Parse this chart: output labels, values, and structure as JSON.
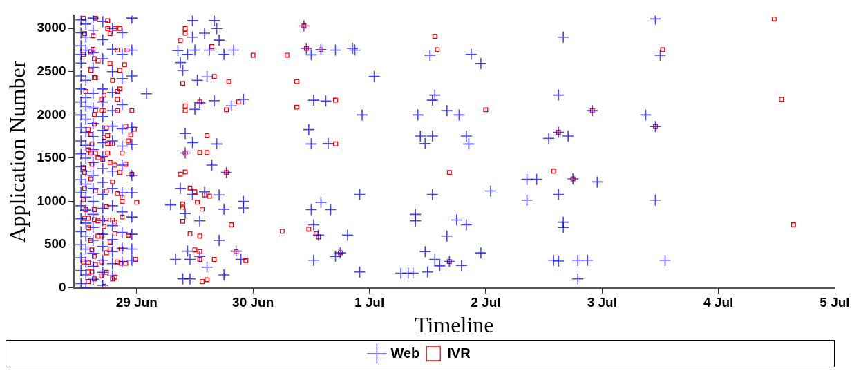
{
  "chart_data": {
    "type": "scatter",
    "xlabel": "Timeline",
    "ylabel": "Application Number",
    "xlim": [
      "--06-28T11:00",
      "--07-05"
    ],
    "ylim": [
      0,
      3150
    ],
    "xticks": [
      {
        "value": "--06-29",
        "label": "29 Jun"
      },
      {
        "value": "--06-30",
        "label": "30 Jun"
      },
      {
        "value": "--07-01",
        "label": "1 Jul"
      },
      {
        "value": "--07-02",
        "label": "2 Jul"
      },
      {
        "value": "--07-03",
        "label": "3 Jul"
      },
      {
        "value": "--07-04",
        "label": "4 Jul"
      },
      {
        "value": "--07-05",
        "label": "5 Jul"
      }
    ],
    "yticks": [
      0,
      500,
      1000,
      1500,
      2000,
      2500,
      3000
    ],
    "grid": false,
    "legend": "bottom",
    "series": [
      {
        "name": "Web",
        "color": "#0000ff",
        "marker": "cross",
        "x": [
          "--06-28T12:30",
          "--06-28T12:30",
          "--06-28T12:30",
          "--06-28T12:30",
          "--06-28T12:30",
          "--06-28T12:30",
          "--06-28T12:30",
          "--06-28T12:30",
          "--06-28T12:30",
          "--06-28T12:30",
          "--06-28T12:30",
          "--06-28T12:30",
          "--06-28T12:30",
          "--06-28T12:30",
          "--06-28T12:30",
          "--06-28T12:30",
          "--06-28T12:30",
          "--06-28T12:30",
          "--06-28T12:30",
          "--06-28T12:30",
          "--06-28T12:30",
          "--06-28T12:30",
          "--06-28T13:30",
          "--06-28T13:30",
          "--06-28T13:30",
          "--06-28T13:30",
          "--06-28T13:30",
          "--06-28T13:30",
          "--06-28T13:30",
          "--06-28T13:30",
          "--06-28T13:30",
          "--06-28T13:30",
          "--06-28T13:30",
          "--06-28T13:30",
          "--06-28T13:30",
          "--06-28T13:30",
          "--06-28T13:30",
          "--06-28T13:30",
          "--06-28T13:30",
          "--06-28T13:30",
          "--06-28T13:30",
          "--06-28T13:30",
          "--06-28T15:00",
          "--06-28T15:00",
          "--06-28T15:00",
          "--06-28T15:00",
          "--06-28T15:00",
          "--06-28T15:00",
          "--06-28T15:00",
          "--06-28T15:00",
          "--06-28T15:00",
          "--06-28T15:00",
          "--06-28T15:00",
          "--06-28T15:00",
          "--06-28T15:00",
          "--06-28T15:00",
          "--06-28T15:00",
          "--06-28T15:00",
          "--06-28T15:00",
          "--06-28T15:00",
          "--06-28T15:00",
          "--06-28T17:00",
          "--06-28T17:00",
          "--06-28T17:00",
          "--06-28T17:00",
          "--06-28T17:00",
          "--06-28T17:00",
          "--06-28T17:00",
          "--06-28T17:00",
          "--06-28T17:00",
          "--06-28T17:00",
          "--06-28T17:00",
          "--06-28T17:00",
          "--06-28T17:00",
          "--06-28T17:00",
          "--06-28T17:00",
          "--06-28T17:00",
          "--06-28T17:00",
          "--06-28T17:00",
          "--06-28T17:00",
          "--06-28T19:00",
          "--06-28T19:00",
          "--06-28T19:00",
          "--06-28T19:00",
          "--06-28T19:00",
          "--06-28T19:00",
          "--06-28T19:00",
          "--06-28T19:00",
          "--06-28T19:00",
          "--06-28T19:00",
          "--06-28T19:00",
          "--06-28T19:00",
          "--06-28T19:00",
          "--06-28T19:00",
          "--06-28T19:00",
          "--06-28T21:00",
          "--06-28T21:00",
          "--06-28T21:00",
          "--06-28T21:00",
          "--06-28T21:00",
          "--06-28T21:00",
          "--06-28T21:00",
          "--06-28T21:00",
          "--06-28T21:00",
          "--06-28T21:00",
          "--06-28T21:00",
          "--06-28T21:00",
          "--06-28T23:00",
          "--06-28T23:00",
          "--06-28T23:00",
          "--06-28T23:00",
          "--06-28T23:00",
          "--06-28T23:00",
          "--06-28T23:00",
          "--06-28T23:00",
          "--06-28T23:00",
          "--06-28T23:00",
          "--06-28T23:00",
          "--06-29T02:00",
          "--06-29T07:00",
          "--06-29T08:00",
          "--06-29T08:30",
          "--06-29T09:00",
          "--06-29T09:00",
          "--06-29T09:30",
          "--06-29T09:30",
          "--06-29T10:00",
          "--06-29T10:00",
          "--06-29T10:00",
          "--06-29T10:30",
          "--06-29T10:30",
          "--06-29T11:00",
          "--06-29T11:00",
          "--06-29T11:30",
          "--06-29T11:30",
          "--06-29T11:30",
          "--06-29T11:30",
          "--06-29T12:00",
          "--06-29T12:00",
          "--06-29T12:30",
          "--06-29T13:00",
          "--06-29T13:00",
          "--06-29T13:00",
          "--06-29T14:00",
          "--06-29T14:00",
          "--06-29T14:30",
          "--06-29T14:30",
          "--06-29T15:00",
          "--06-29T15:30",
          "--06-29T16:00",
          "--06-29T16:00",
          "--06-29T16:30",
          "--06-29T16:30",
          "--06-29T17:00",
          "--06-29T17:00",
          "--06-29T17:00",
          "--06-29T18:00",
          "--06-29T18:00",
          "--06-29T18:00",
          "--06-29T18:30",
          "--06-29T19:30",
          "--06-29T20:00",
          "--06-29T20:30",
          "--06-29T21:30",
          "--06-29T22:00",
          "--06-29T22:00",
          "--06-29T22:00",
          "--06-30T10:30",
          "--06-30T11:00",
          "--06-30T11:30",
          "--06-30T12:00",
          "--06-30T12:00",
          "--06-30T12:00",
          "--06-30T12:30",
          "--06-30T12:30",
          "--06-30T12:30",
          "--06-30T13:30",
          "--06-30T14:00",
          "--06-30T14:00",
          "--06-30T15:00",
          "--06-30T15:30",
          "--06-30T16:00",
          "--06-30T17:00",
          "--06-30T17:00",
          "--06-30T18:00",
          "--06-30T19:30",
          "--06-30T20:30",
          "--06-30T21:00",
          "--06-30T22:00",
          "--06-30T22:00",
          "--06-30T22:30",
          "--07-01T01:00",
          "--07-01T06:30",
          "--07-01T08:00",
          "--07-01T09:00",
          "--07-01T09:30",
          "--07-01T09:30",
          "--07-01T10:00",
          "--07-01T10:30",
          "--07-01T11:30",
          "--07-01T11:30",
          "--07-01T12:00",
          "--07-01T12:30",
          "--07-01T13:00",
          "--07-01T13:00",
          "--07-01T13:00",
          "--07-01T13:30",
          "--07-01T13:30",
          "--07-01T14:30",
          "--07-01T16:00",
          "--07-01T16:00",
          "--07-01T16:30",
          "--07-01T18:00",
          "--07-01T18:30",
          "--07-01T19:00",
          "--07-01T20:00",
          "--07-01T20:00",
          "--07-01T20:30",
          "--07-01T21:00",
          "--07-01T23:00",
          "--07-01T23:00",
          "--07-02T01:00",
          "--07-02T08:30",
          "--07-02T08:30",
          "--07-02T10:30",
          "--07-02T13:00",
          "--07-02T14:00",
          "--07-02T15:00",
          "--07-02T15:00",
          "--07-02T15:00",
          "--07-02T15:00",
          "--07-02T16:00",
          "--07-02T16:00",
          "--07-02T16:00",
          "--07-02T17:00",
          "--07-02T18:00",
          "--07-02T19:00",
          "--07-02T19:00",
          "--07-02T21:00",
          "--07-02T22:00",
          "--07-02T23:00",
          "--07-03T09:00",
          "--07-03T11:00",
          "--07-03T11:00",
          "--07-03T11:00",
          "--07-03T12:00",
          "--07-03T13:00"
        ],
        "values": [
          3100,
          2950,
          2800,
          2700,
          2600,
          2450,
          2300,
          2150,
          2000,
          1850,
          1700,
          1550,
          1400,
          1250,
          1100,
          950,
          800,
          650,
          500,
          350,
          200,
          50,
          3050,
          2900,
          2750,
          2400,
          2200,
          2100,
          1950,
          1800,
          1650,
          1500,
          1350,
          1200,
          1050,
          900,
          750,
          600,
          450,
          300,
          150,
          0,
          3120,
          2980,
          2720,
          2550,
          2250,
          2080,
          1900,
          1750,
          1600,
          1450,
          1300,
          1150,
          1000,
          850,
          700,
          550,
          400,
          250,
          100,
          3080,
          2870,
          2650,
          2300,
          2150,
          1980,
          1820,
          1680,
          1520,
          1380,
          1220,
          1080,
          920,
          780,
          620,
          480,
          320,
          180,
          30,
          3000,
          2760,
          2500,
          2260,
          2050,
          1870,
          1700,
          1350,
          1150,
          950,
          720,
          560,
          420,
          280,
          140,
          2950,
          2700,
          2420,
          2120,
          1840,
          1640,
          1420,
          1100,
          880,
          640,
          460,
          300,
          3120,
          2750,
          2450,
          1850,
          1660,
          1300,
          1100,
          820,
          620,
          450,
          320,
          2245,
          960,
          330,
          2745,
          2605,
          1150,
          2515,
          105,
          1785,
          1560,
          860,
          2700,
          425,
          330,
          105,
          3090,
          2900,
          1680,
          1080,
          2750,
          2065,
          2400,
          2140,
          775,
          365,
          2945,
          1110,
          2440,
          240,
          2750,
          1420,
          3090,
          2165,
          3000,
          1665,
          2865,
          1075,
          550,
          2700,
          910,
          150,
          1335,
          2105,
          2750,
          425,
          330,
          2180,
          1000,
          925,
          3030,
          2770,
          1830,
          2695,
          1665,
          905,
          2170,
          730,
          320,
          610,
          2755,
          990,
          2160,
          1670,
          905,
          2750,
          365,
          405,
          610,
          2770,
          2750,
          1080,
          185,
          2000,
          2445,
          170,
          170,
          170,
          850,
          775,
          2000,
          1755,
          1670,
          420,
          185,
          2690,
          2170,
          1755,
          1080,
          2230,
          330,
          255,
          2050,
          600,
          305,
          785,
          2000,
          260,
          1755,
          730,
          1665,
          2700,
          2595,
          405,
          1120,
          1255,
          1015,
          1255,
          1730,
          320,
          2230,
          1800,
          1080,
          310,
          2900,
          760,
          700,
          1755,
          1260,
          320,
          105,
          320,
          2050,
          1225,
          2000,
          3110,
          1865,
          1015,
          2690,
          320
        ]
      },
      {
        "name": "IVR",
        "color": "#ff0000",
        "marker": "square",
        "x": [
          "--06-28T13:00",
          "--06-28T15:30",
          "--06-28T18:00",
          "--06-28T18:00",
          "--06-28T19:30",
          "--06-28T20:30",
          "--06-28T13:15",
          "--06-28T15:00",
          "--06-28T18:30",
          "--06-28T15:00",
          "--06-28T13:00",
          "--06-28T14:30",
          "--06-28T20:00",
          "--06-28T22:00",
          "--06-28T15:15",
          "--06-28T16:00",
          "--06-28T18:30",
          "--06-28T21:30",
          "--06-28T20:30",
          "--06-28T14:30",
          "--06-28T15:15",
          "--06-28T15:30",
          "--06-28T19:00",
          "--06-28T20:30",
          "--06-28T17:15",
          "--06-28T20:00",
          "--06-28T13:30",
          "--06-28T20:00",
          "--06-28T16:45",
          "--06-28T15:15",
          "--06-28T15:30",
          "--06-28T16:45",
          "--06-28T17:15",
          "--06-28T20:00",
          "--06-28T23:00",
          "--06-28T15:15",
          "--06-28T17:45",
          "--06-28T21:45",
          "--06-28T23:30",
          "--06-28T14:00",
          "--06-28T14:30",
          "--06-28T17:15",
          "--06-28T18:00",
          "--06-28T22:45",
          "--06-28T22:15",
          "--06-28T14:45",
          "--06-28T18:00",
          "--06-28T19:00",
          "--06-28T14:00",
          "--06-28T14:30",
          "--06-28T15:30",
          "--06-28T18:00",
          "--06-28T21:00",
          "--06-28T16:00",
          "--06-28T17:00",
          "--06-28T14:45",
          "--06-28T18:30",
          "--06-28T19:30",
          "--06-28T21:45",
          "--06-28T13:00",
          "--06-28T13:15",
          "--06-28T20:30",
          "--06-28T23:00",
          "--06-28T14:30",
          "--06-28T19:00",
          "--06-28T13:15",
          "--06-28T15:30",
          "--06-28T17:45",
          "--06-28T20:00",
          "--06-28T21:00",
          "--06-28T21:00",
          "--06-29T00:00",
          "--06-28T13:00",
          "--06-28T13:30",
          "--06-28T15:15",
          "--06-28T17:45",
          "--06-28T21:00",
          "--06-28T13:15",
          "--06-28T14:00",
          "--06-28T15:15",
          "--06-28T16:00",
          "--06-28T17:45",
          "--06-28T19:00",
          "--06-28T19:30",
          "--06-28T17:15",
          "--06-28T14:00",
          "--06-28T14:30",
          "--06-28T19:30",
          "--06-28T16:00",
          "--06-28T16:45",
          "--06-28T22:15",
          "--06-28T18:30",
          "--06-28T14:45",
          "--06-28T18:30",
          "--06-28T20:45",
          "--06-28T17:45",
          "--06-28T23:45",
          "--06-28T15:15",
          "--06-28T13:00",
          "--06-28T14:00",
          "--06-28T15:30",
          "--06-28T16:45",
          "--06-28T20:00",
          "--06-28T20:45",
          "--06-28T21:45",
          "--06-28T14:00",
          "--06-28T14:45",
          "--06-28T17:45",
          "--06-28T16:45",
          "--06-28T19:30",
          "--06-28T19:00",
          "--06-28T15:15",
          "--06-28T14:00",
          "--06-28T17:15",
          "--06-29T09:00",
          "--06-29T09:30",
          "--06-29T09:30",
          "--06-29T09:30",
          "--06-29T09:30",
          "--06-29T09:00",
          "--06-29T10:00",
          "--06-29T10:00",
          "--06-29T10:00",
          "--06-29T10:00",
          "--06-29T10:00",
          "--06-29T10:00",
          "--06-29T11:00",
          "--06-29T11:00",
          "--06-29T12:00",
          "--06-29T12:00",
          "--06-29T12:30",
          "--06-29T13:00",
          "--06-29T13:00",
          "--06-29T13:00",
          "--06-29T13:00",
          "--06-29T13:00",
          "--06-29T13:30",
          "--06-29T13:30",
          "--06-29T14:00",
          "--06-29T14:30",
          "--06-29T14:30",
          "--06-29T14:30",
          "--06-29T15:00",
          "--06-29T15:30",
          "--06-29T16:00",
          "--06-29T16:00",
          "--06-29T18:30",
          "--06-29T18:30",
          "--06-29T19:00",
          "--06-29T19:30",
          "--06-29T20:30",
          "--06-29T21:00",
          "--06-29T22:30",
          "--06-30T00:00",
          "--06-30T06:00",
          "--06-30T07:00",
          "--06-30T09:00",
          "--06-30T09:00",
          "--06-30T10:30",
          "--06-30T11:00",
          "--06-30T11:30",
          "--06-30T13:00",
          "--06-30T13:30",
          "--06-30T14:00",
          "--06-30T17:00",
          "--06-30T17:00",
          "--06-30T18:00",
          "--07-01T13:30",
          "--07-01T14:00",
          "--07-01T16:30",
          "--07-01T16:30",
          "--07-02T00:00",
          "--07-02T14:00",
          "--07-02T15:00",
          "--07-02T18:00",
          "--07-02T22:00",
          "--07-03T11:00",
          "--07-03T12:30",
          "--07-04T11:30",
          "--07-04T13:00",
          "--07-04T15:30"
        ],
        "values": [
          3120,
          3120,
          3090,
          3000,
          3000,
          3000,
          2940,
          2915,
          2940,
          2760,
          2700,
          2730,
          2750,
          2750,
          2650,
          2625,
          2595,
          2580,
          2515,
          2515,
          2430,
          2430,
          2400,
          2300,
          2230,
          2270,
          2270,
          2180,
          2180,
          2005,
          2050,
          2050,
          2050,
          2050,
          2050,
          1895,
          1850,
          1870,
          1835,
          1830,
          1775,
          1740,
          1760,
          1770,
          1700,
          1665,
          1670,
          1665,
          1595,
          1560,
          1560,
          1560,
          1560,
          1505,
          1485,
          1430,
          1450,
          1420,
          1430,
          1390,
          1335,
          1335,
          1315,
          1260,
          1225,
          1150,
          1120,
          1120,
          1090,
          1045,
          1000,
          990,
          1020,
          905,
          905,
          940,
          820,
          805,
          805,
          790,
          775,
          785,
          785,
          760,
          710,
          695,
          545,
          625,
          600,
          600,
          610,
          530,
          440,
          450,
          450,
          405,
          330,
          365,
          300,
          295,
          270,
          300,
          300,
          285,
          285,
          185,
          185,
          180,
          140,
          125,
          105,
          105,
          75,
          20,
          2860,
          2365,
          970,
          935,
          770,
          1315,
          3000,
          2945,
          2105,
          2050,
          1560,
          1340,
          1155,
          625,
          1110,
          440,
          990,
          2150,
          1565,
          600,
          420,
          330,
          910,
          75,
          1075,
          1760,
          1565,
          95,
          1060,
          2790,
          2445,
          330,
          2060,
          1335,
          2385,
          730,
          420,
          2150,
          315,
          2690,
          655,
          2690,
          2385,
          2090,
          3030,
          2770,
          680,
          625,
          590,
          2755,
          2170,
          1665,
          405,
          2910,
          2755,
          1335,
          305,
          2060,
          1350,
          1800,
          1260,
          2050,
          1865,
          2755,
          3110,
          2180,
          730
        ]
      }
    ]
  }
}
